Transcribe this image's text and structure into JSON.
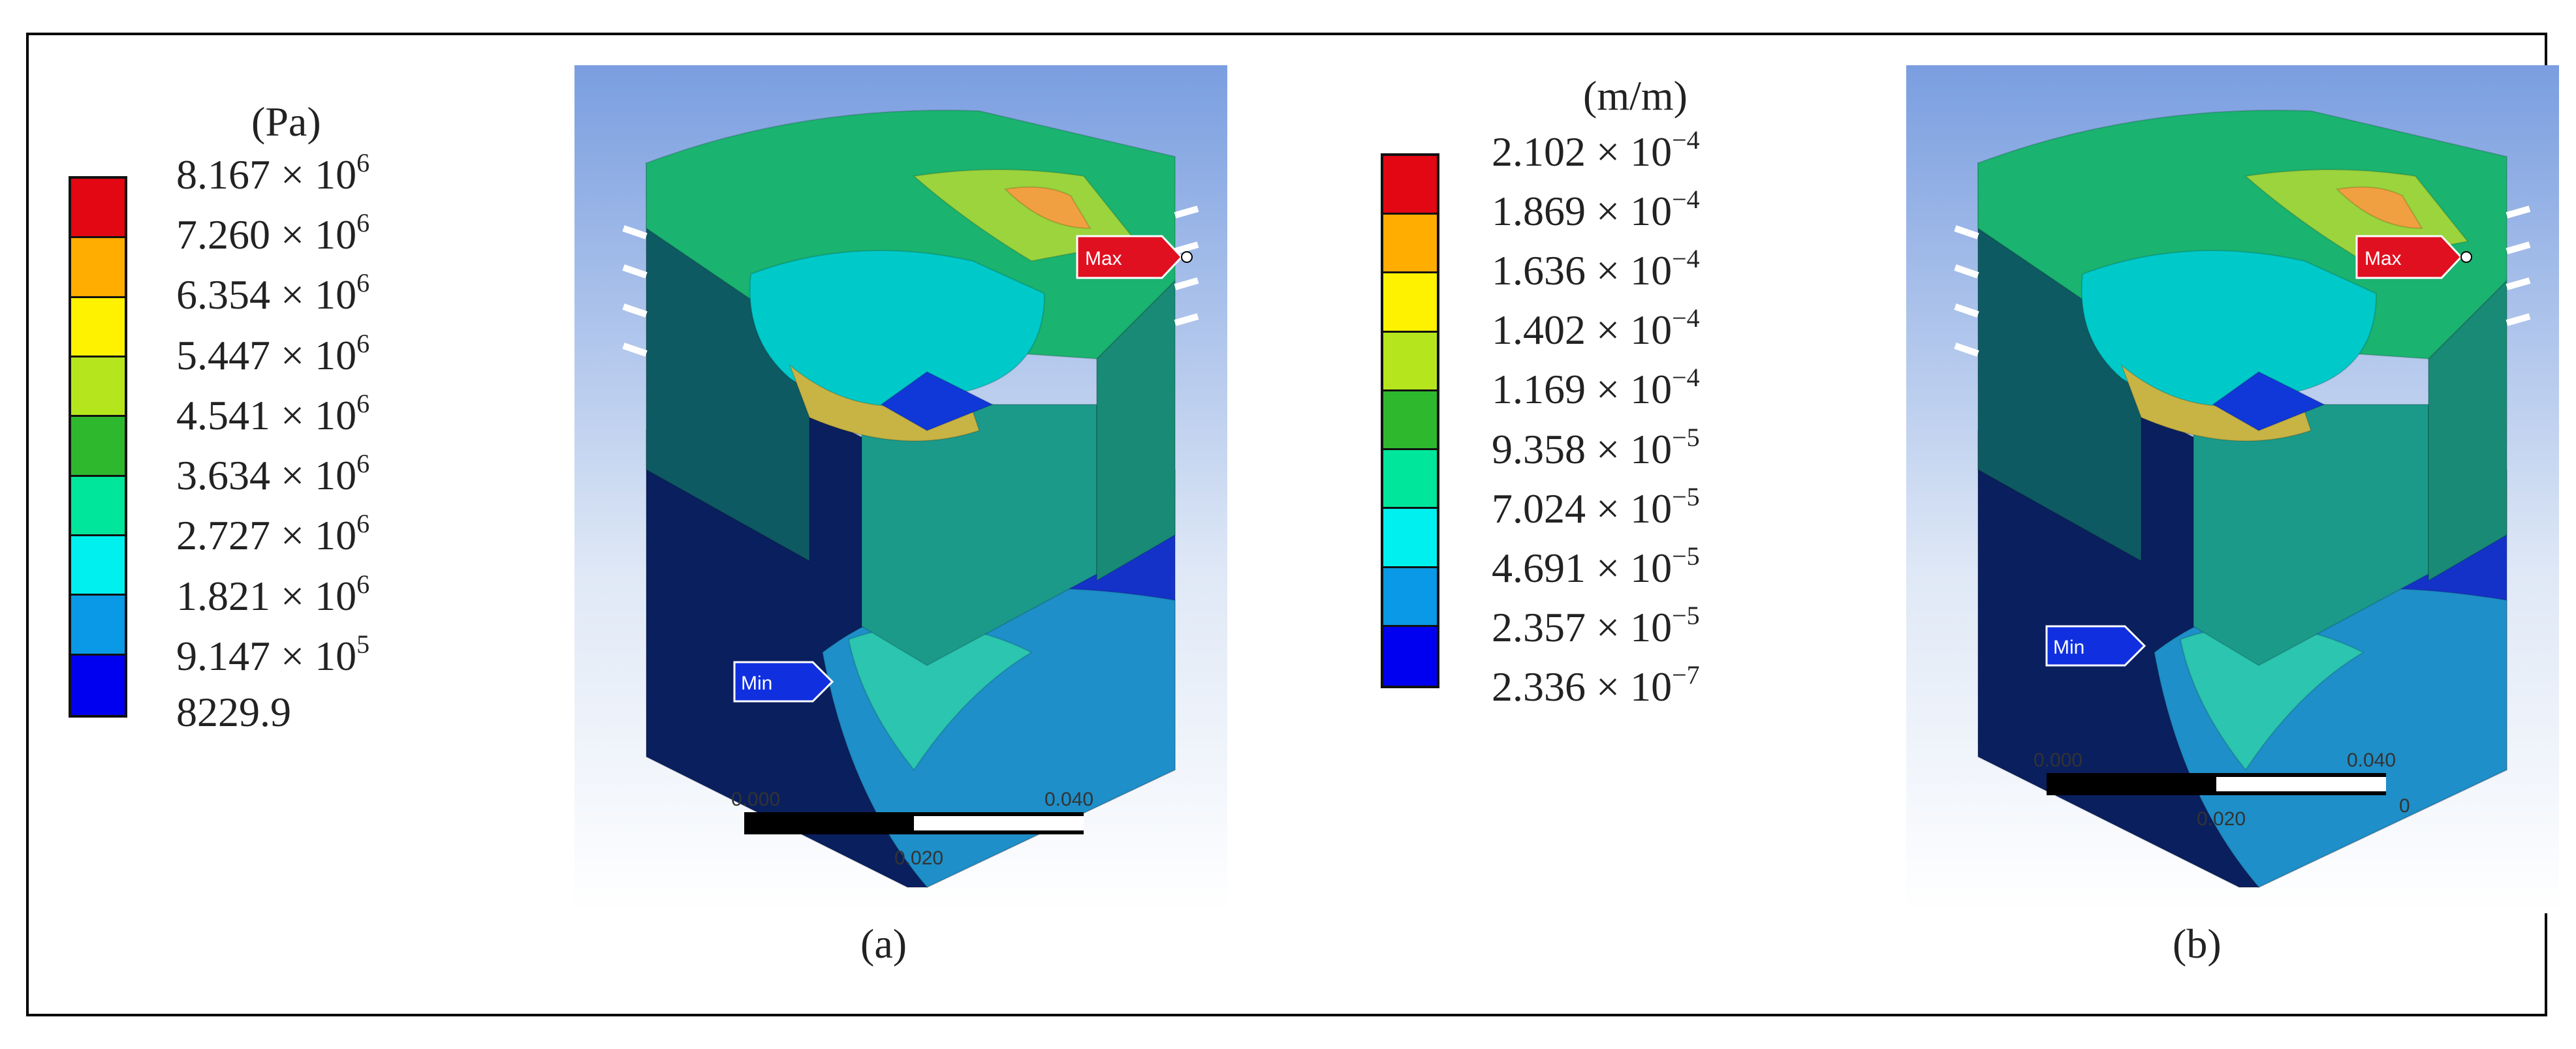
{
  "panels": [
    {
      "id": "a",
      "caption": "(a)",
      "unit": "(Pa)",
      "colors": [
        "#e30613",
        "#ffad00",
        "#fff200",
        "#b5e61d",
        "#2eb82e",
        "#00e69a",
        "#00f0f0",
        "#0a99e6",
        "#0000f0"
      ],
      "labels": [
        {
          "mant": "8.167",
          "exp": "6"
        },
        {
          "mant": "7.260",
          "exp": "6"
        },
        {
          "mant": "6.354",
          "exp": "6"
        },
        {
          "mant": "5.447",
          "exp": "6"
        },
        {
          "mant": "4.541",
          "exp": "6"
        },
        {
          "mant": "3.634",
          "exp": "6"
        },
        {
          "mant": "2.727",
          "exp": "6"
        },
        {
          "mant": "1.821",
          "exp": "6"
        },
        {
          "mant": "9.147",
          "exp": "5"
        },
        {
          "mant": "8229.9",
          "exp": ""
        }
      ],
      "max_tag": "Max",
      "min_tag": "Min",
      "scale_ticks": [
        "0.000",
        "0.040",
        "0.020"
      ]
    },
    {
      "id": "b",
      "caption": "(b)",
      "unit": "(m/m)",
      "colors": [
        "#e30613",
        "#ffad00",
        "#fff200",
        "#b5e61d",
        "#2eb82e",
        "#00e69a",
        "#00f0f0",
        "#0a99e6",
        "#0000f0"
      ],
      "labels": [
        {
          "mant": "2.102",
          "exp": "−4"
        },
        {
          "mant": "1.869",
          "exp": "−4"
        },
        {
          "mant": "1.636",
          "exp": "−4"
        },
        {
          "mant": "1.402",
          "exp": "−4"
        },
        {
          "mant": "1.169",
          "exp": "−4"
        },
        {
          "mant": "9.358",
          "exp": "−5"
        },
        {
          "mant": "7.024",
          "exp": "−5"
        },
        {
          "mant": "4.691",
          "exp": "−5"
        },
        {
          "mant": "2.357",
          "exp": "−5"
        },
        {
          "mant": "2.336",
          "exp": "−7"
        }
      ],
      "max_tag": "Max",
      "min_tag": "Min",
      "scale_ticks": [
        "0.000",
        "0.040",
        "0.020",
        "0"
      ]
    }
  ],
  "times_sign": "×",
  "ten": "10"
}
